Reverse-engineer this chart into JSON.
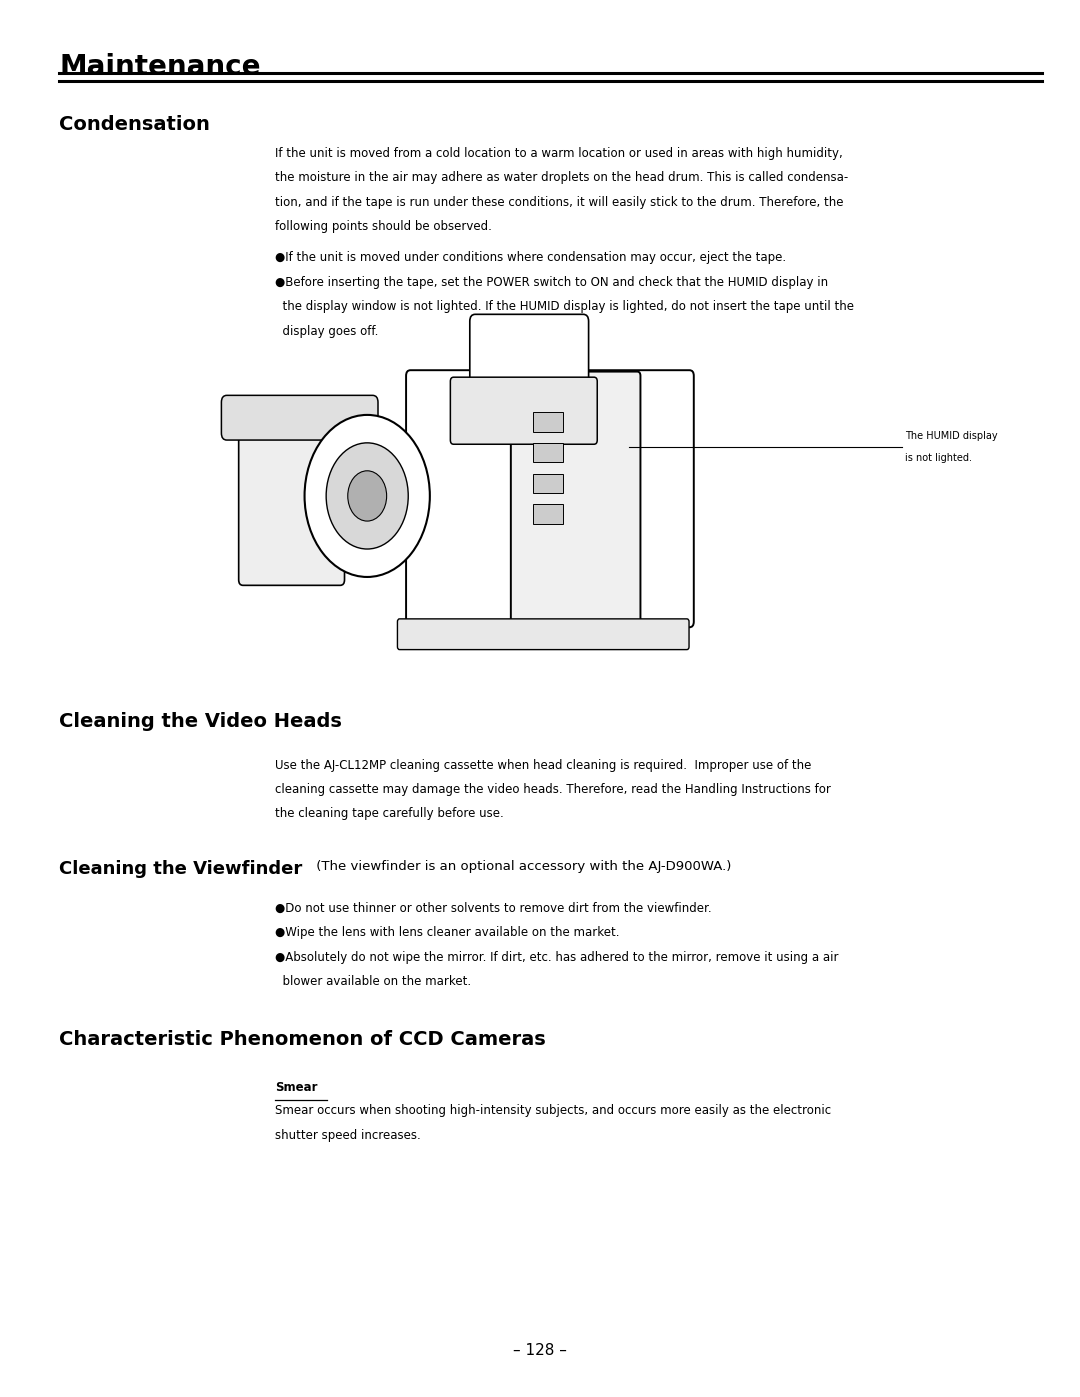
{
  "bg_color": "#ffffff",
  "page_width": 10.8,
  "page_height": 13.97,
  "page_number": "– 128 –",
  "header_title": "Maintenance",
  "condensation_heading": "Condensation",
  "condensation_body": [
    "If the unit is moved from a cold location to a warm location or used in areas with high humidity,",
    "the moisture in the air may adhere as water droplets on the head drum. This is called condensa-",
    "tion, and if the tape is run under these conditions, it will easily stick to the drum. Therefore, the",
    "following points should be observed."
  ],
  "condensation_bullet1": "●If the unit is moved under conditions where condensation may occur, eject the tape.",
  "condensation_bullet2a": "●Before inserting the tape, set the POWER switch to ON and check that the HUMID display in",
  "condensation_bullet2b": "  the display window is not lighted. If the HUMID display is lighted, do not insert the tape until the",
  "condensation_bullet2c": "  display goes off.",
  "humid_label_line1": "The HUMID display",
  "humid_label_line2": "is not lighted.",
  "clean_heads_heading": "Cleaning the Video Heads",
  "clean_heads_body": [
    "Use the AJ-CL12MP cleaning cassette when head cleaning is required.  Improper use of the",
    "cleaning cassette may damage the video heads. Therefore, read the Handling Instructions for",
    "the cleaning tape carefully before use."
  ],
  "viewfinder_bold": "Cleaning the Viewfinder",
  "viewfinder_normal": " (The viewfinder is an optional accessory with the AJ-D900WA.)",
  "viewfinder_bullets": [
    "●Do not use thinner or other solvents to remove dirt from the viewfinder.",
    "●Wipe the lens with lens cleaner available on the market.",
    "●Absolutely do not wipe the mirror. If dirt, etc. has adhered to the mirror, remove it using a air",
    "  blower available on the market."
  ],
  "ccd_heading": "Characteristic Phenomenon of CCD Cameras",
  "smear_heading": "Smear",
  "smear_body": [
    "Smear occurs when shooting high-intensity subjects, and occurs more easily as the electronic",
    "shutter speed increases."
  ]
}
